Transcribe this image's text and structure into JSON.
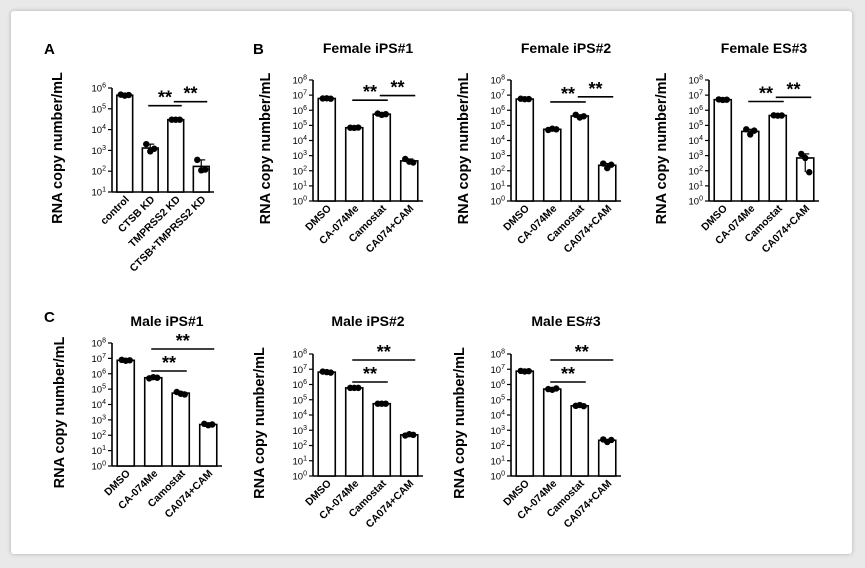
{
  "chart_data": [
    {
      "type": "bar",
      "panel": "A",
      "title": "",
      "ylabel": "RNA copy number/mL",
      "log_scale": true,
      "y_ticks": [
        "10^1",
        "10^2",
        "10^3",
        "10^4",
        "10^5",
        "10^6"
      ],
      "categories": [
        "control",
        "CTSB KD",
        "TMPRSS2 KD",
        "CTSB+TMPRSS2 KD"
      ],
      "values": [
        450000,
        1300,
        30000,
        170
      ],
      "points": [
        [
          480000,
          430000,
          460000
        ],
        [
          2000,
          900,
          1200
        ],
        [
          30000,
          30000,
          30000
        ],
        [
          350,
          110,
          120
        ]
      ],
      "significance": [
        {
          "from": 1,
          "to": 2,
          "label": "**"
        },
        {
          "from": 2,
          "to": 3,
          "label": "**"
        }
      ]
    },
    {
      "type": "bar",
      "panel": "B",
      "title": "Female iPS#1",
      "ylabel": "RNA copy number/mL",
      "log_scale": true,
      "y_ticks": [
        "10^0",
        "10^1",
        "10^2",
        "10^3",
        "10^4",
        "10^5",
        "10^6",
        "10^7",
        "10^8"
      ],
      "categories": [
        "DMSO",
        "CA-074Me",
        "Camostat",
        "CA074+CAM"
      ],
      "values": [
        6000000,
        70000,
        550000,
        450
      ],
      "points": [
        [
          6000000,
          6200000,
          5800000
        ],
        [
          70000,
          68000,
          72000
        ],
        [
          600000,
          500000,
          550000
        ],
        [
          600,
          400,
          350
        ]
      ],
      "significance": [
        {
          "from": 1,
          "to": 2,
          "label": "**"
        },
        {
          "from": 2,
          "to": 3,
          "label": "**"
        }
      ]
    },
    {
      "type": "bar",
      "panel": "",
      "title": "Female iPS#2",
      "ylabel": "RNA copy number/mL",
      "log_scale": true,
      "y_ticks": [
        "10^0",
        "10^1",
        "10^2",
        "10^3",
        "10^4",
        "10^5",
        "10^6",
        "10^7",
        "10^8"
      ],
      "categories": [
        "DMSO",
        "CA-074Me",
        "Camostat",
        "CA074+CAM"
      ],
      "values": [
        5500000,
        55000,
        420000,
        230
      ],
      "points": [
        [
          5800000,
          5400000,
          5500000
        ],
        [
          50000,
          60000,
          55000
        ],
        [
          500000,
          330000,
          400000
        ],
        [
          300,
          150,
          250
        ]
      ],
      "significance": [
        {
          "from": 1,
          "to": 2,
          "label": "**"
        },
        {
          "from": 2,
          "to": 3,
          "label": "**"
        }
      ]
    },
    {
      "type": "bar",
      "panel": "",
      "title": "Female ES#3",
      "ylabel": "RNA copy number/mL",
      "log_scale": true,
      "y_ticks": [
        "10^0",
        "10^1",
        "10^2",
        "10^3",
        "10^4",
        "10^5",
        "10^6",
        "10^7",
        "10^8"
      ],
      "categories": [
        "DMSO",
        "CA-074Me",
        "Camostat",
        "CA074+CAM"
      ],
      "values": [
        5000000,
        40000,
        450000,
        700
      ],
      "points": [
        [
          5200000,
          4800000,
          5000000
        ],
        [
          55000,
          25000,
          45000
        ],
        [
          460000,
          440000,
          450000
        ],
        [
          1300,
          700,
          80
        ]
      ],
      "significance": [
        {
          "from": 1,
          "to": 2,
          "label": "**"
        },
        {
          "from": 2,
          "to": 3,
          "label": "**"
        }
      ]
    },
    {
      "type": "bar",
      "panel": "C",
      "title": "Male iPS#1",
      "ylabel": "RNA copy number/mL",
      "log_scale": true,
      "y_ticks": [
        "10^0",
        "10^1",
        "10^2",
        "10^3",
        "10^4",
        "10^5",
        "10^6",
        "10^7",
        "10^8"
      ],
      "categories": [
        "DMSO",
        "CA-074Me",
        "Camostat",
        "CA074+CAM"
      ],
      "values": [
        7500000,
        550000,
        55000,
        500
      ],
      "points": [
        [
          8000000,
          7000000,
          7500000
        ],
        [
          500000,
          600000,
          550000
        ],
        [
          65000,
          50000,
          45000
        ],
        [
          550,
          450,
          500
        ]
      ],
      "significance": [
        {
          "from": 1,
          "to": 2,
          "label": "**"
        },
        {
          "from": 1,
          "to": 3,
          "label": "**"
        }
      ]
    },
    {
      "type": "bar",
      "panel": "",
      "title": "Male iPS#2",
      "ylabel": "RNA copy number/mL",
      "log_scale": true,
      "y_ticks": [
        "10^0",
        "10^1",
        "10^2",
        "10^3",
        "10^4",
        "10^5",
        "10^6",
        "10^7",
        "10^8"
      ],
      "categories": [
        "DMSO",
        "CA-074Me",
        "Camostat",
        "CA074+CAM"
      ],
      "values": [
        6500000,
        600000,
        55000,
        500
      ],
      "points": [
        [
          7000000,
          6500000,
          6000000
        ],
        [
          600000,
          600000,
          600000
        ],
        [
          55000,
          55000,
          55000
        ],
        [
          450,
          550,
          500
        ]
      ],
      "significance": [
        {
          "from": 1,
          "to": 2,
          "label": "**"
        },
        {
          "from": 1,
          "to": 3,
          "label": "**"
        }
      ]
    },
    {
      "type": "bar",
      "panel": "",
      "title": "Male ES#3",
      "ylabel": "RNA copy number/mL",
      "log_scale": true,
      "y_ticks": [
        "10^0",
        "10^1",
        "10^2",
        "10^3",
        "10^4",
        "10^5",
        "10^6",
        "10^7",
        "10^8"
      ],
      "categories": [
        "DMSO",
        "CA-074Me",
        "Camostat",
        "CA074+CAM"
      ],
      "values": [
        7500000,
        500000,
        40000,
        220
      ],
      "points": [
        [
          7800000,
          7200000,
          7500000
        ],
        [
          500000,
          450000,
          550000
        ],
        [
          40000,
          45000,
          38000
        ],
        [
          250,
          170,
          230
        ]
      ],
      "significance": [
        {
          "from": 1,
          "to": 2,
          "label": "**"
        },
        {
          "from": 1,
          "to": 3,
          "label": "**"
        }
      ]
    }
  ]
}
